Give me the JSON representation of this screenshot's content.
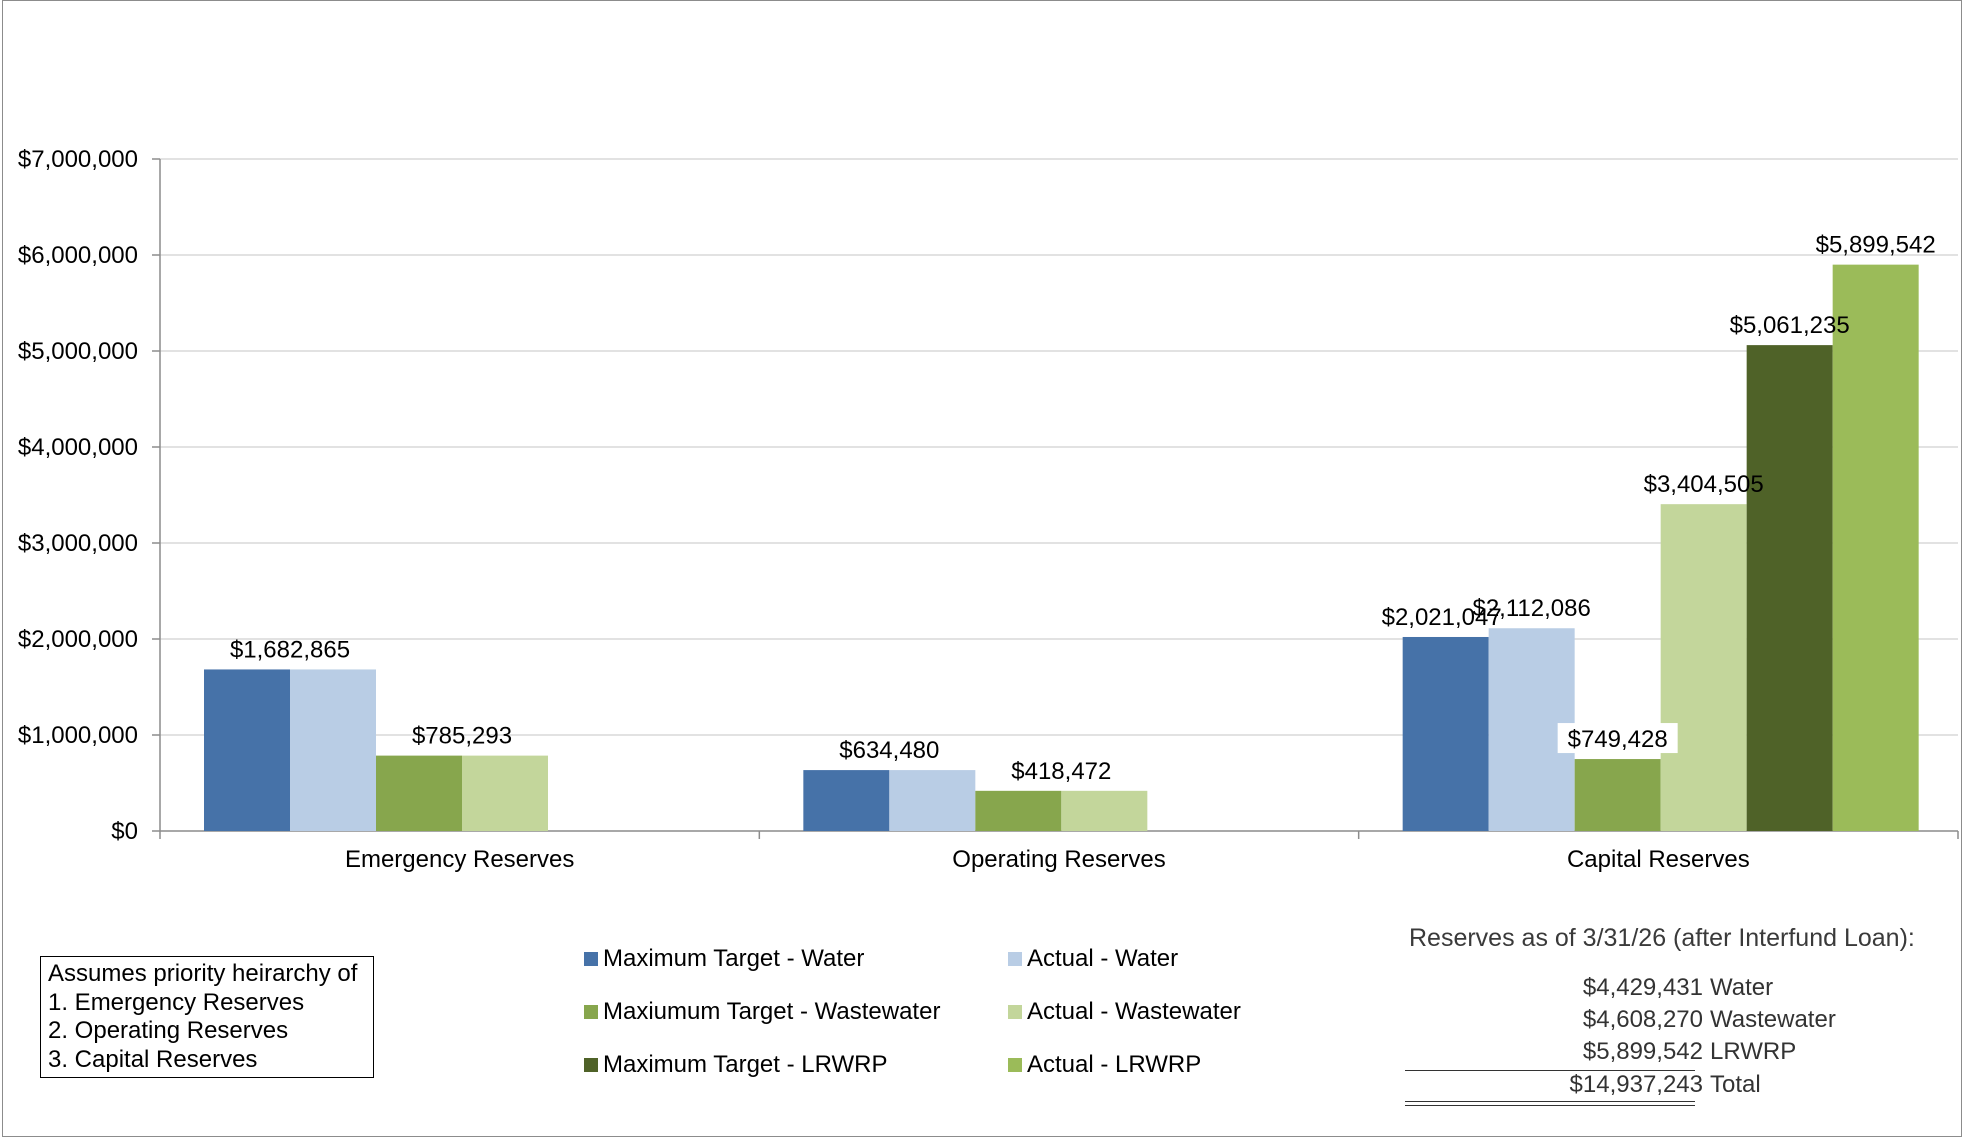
{
  "chart_data": {
    "type": "bar",
    "categories": [
      "Emergency Reserves",
      "Operating Reserves",
      "Capital Reserves"
    ],
    "ylim": [
      0,
      7000000
    ],
    "yticks": [
      0,
      1000000,
      2000000,
      3000000,
      4000000,
      5000000,
      6000000,
      7000000
    ],
    "ytick_labels": [
      "$0",
      "$1,000,000",
      "$2,000,000",
      "$3,000,000",
      "$4,000,000",
      "$5,000,000",
      "$6,000,000",
      "$7,000,000"
    ],
    "grid": true,
    "legend_position": "bottom",
    "series": [
      {
        "name": "Maximum Target - Water",
        "color": "#4672A8",
        "values": [
          1682865,
          634480,
          2021047
        ]
      },
      {
        "name": "Actual - Water",
        "color": "#B9CDE5",
        "values": [
          1682865,
          634480,
          2112086
        ]
      },
      {
        "name": "Maxiumum Target - Wastewater",
        "color": "#87A64D",
        "values": [
          785293,
          418472,
          749428
        ]
      },
      {
        "name": "Actual - Wastewater",
        "color": "#C3D69B",
        "values": [
          785293,
          418472,
          3404505
        ]
      },
      {
        "name": "Maximum Target - LRWRP",
        "color": "#4F6228",
        "values": [
          null,
          null,
          5061235
        ]
      },
      {
        "name": "Actual - LRWRP",
        "color": "#9BBB59",
        "values": [
          null,
          null,
          5899542
        ]
      }
    ],
    "data_labels": [
      {
        "category": "Emergency Reserves",
        "text": "$1,682,865",
        "value": 1682865
      },
      {
        "category": "Emergency Reserves",
        "text": "$785,293",
        "value": 785293
      },
      {
        "category": "Operating Reserves",
        "text": "$634,480",
        "value": 634480
      },
      {
        "category": "Operating Reserves",
        "text": "$418,472",
        "value": 418472
      },
      {
        "category": "Capital Reserves",
        "text": "$2,021,047",
        "value": 2021047
      },
      {
        "category": "Capital Reserves",
        "text": "$2,112,086",
        "value": 2112086
      },
      {
        "category": "Capital Reserves",
        "text": "$749,428",
        "value": 749428
      },
      {
        "category": "Capital Reserves",
        "text": "$3,404,505",
        "value": 3404505
      },
      {
        "category": "Capital Reserves",
        "text": "$5,061,235",
        "value": 5061235
      },
      {
        "category": "Capital Reserves",
        "text": "$5,899,542",
        "value": 5899542
      }
    ]
  },
  "note": {
    "lines": [
      "Assumes priority heirarchy of",
      "1. Emergency Reserves",
      "2. Operating Reserves",
      "3. Capital Reserves"
    ]
  },
  "summary": {
    "title": "Reserves as of 3/31/26 (after Interfund Loan):",
    "rows": [
      {
        "amount": "$4,429,431",
        "label": "Water"
      },
      {
        "amount": "$4,608,270",
        "label": "Wastewater"
      },
      {
        "amount": "$5,899,542",
        "label": "LRWRP"
      }
    ],
    "total": {
      "amount": "$14,937,243",
      "label": "Total"
    }
  }
}
